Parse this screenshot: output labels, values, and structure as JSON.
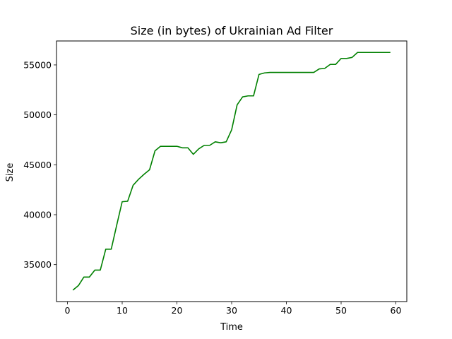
{
  "chart_data": {
    "type": "line",
    "title": "Size (in bytes) of Ukrainian Ad Filter",
    "xlabel": "Time",
    "ylabel": "Size",
    "xlim": [
      -2,
      62
    ],
    "ylim": [
      31300,
      57400
    ],
    "xticks": [
      0,
      10,
      20,
      30,
      40,
      50,
      60
    ],
    "yticks": [
      35000,
      40000,
      45000,
      50000,
      55000
    ],
    "grid": false,
    "line_color": "#008000",
    "series": [
      {
        "name": "Size",
        "x": [
          1,
          2,
          3,
          4,
          5,
          6,
          7,
          8,
          9,
          10,
          11,
          12,
          13,
          14,
          15,
          16,
          17,
          18,
          19,
          20,
          21,
          22,
          23,
          24,
          25,
          26,
          27,
          28,
          29,
          30,
          31,
          32,
          33,
          34,
          35,
          36,
          37,
          38,
          39,
          40,
          41,
          42,
          43,
          44,
          45,
          46,
          47,
          48,
          49,
          50,
          51,
          52,
          53,
          54,
          55,
          56,
          57,
          58,
          59
        ],
        "values": [
          32450,
          32900,
          33750,
          33750,
          34450,
          34450,
          36550,
          36550,
          38950,
          41300,
          41350,
          42950,
          43550,
          44050,
          44500,
          46400,
          46850,
          46850,
          46850,
          46850,
          46700,
          46700,
          46050,
          46600,
          46950,
          46950,
          47300,
          47200,
          47300,
          48500,
          51000,
          51800,
          51900,
          51900,
          54050,
          54200,
          54250,
          54250,
          54250,
          54250,
          54250,
          54250,
          54250,
          54250,
          54250,
          54600,
          54650,
          55050,
          55050,
          55650,
          55650,
          55750,
          56250,
          56250,
          56250,
          56250,
          56250,
          56250,
          56250
        ]
      }
    ]
  }
}
